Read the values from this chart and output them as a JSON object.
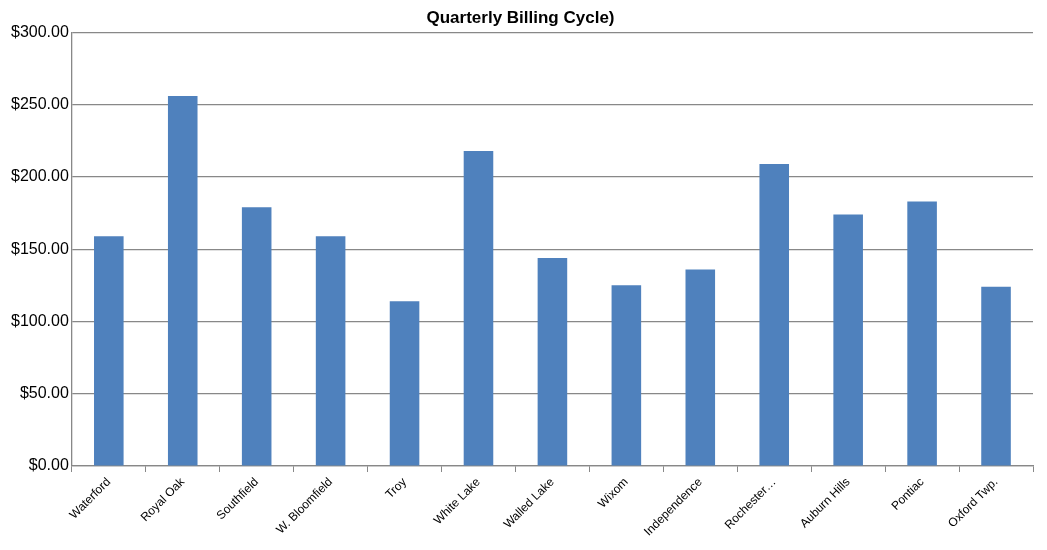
{
  "chart_data": {
    "type": "bar",
    "title": "Quarterly Billing Cycle)",
    "categories": [
      "Waterford",
      "Royal Oak",
      "Southfield",
      "W. Bloomfield",
      "Troy",
      "White Lake",
      "Walled Lake",
      "Wixom",
      "Independence",
      "Rochester…",
      "Auburn Hills",
      "Pontiac",
      "Oxford Twp."
    ],
    "values": [
      159,
      256,
      179,
      159,
      114,
      218,
      144,
      125,
      136,
      209,
      174,
      183,
      124
    ],
    "color": "#4f81bd",
    "ylim": [
      0,
      300
    ],
    "yticks": [
      {
        "value": 0,
        "label": "$0.00"
      },
      {
        "value": 50,
        "label": "$50.00"
      },
      {
        "value": 100,
        "label": "$100.00"
      },
      {
        "value": 150,
        "label": "$150.00"
      },
      {
        "value": 200,
        "label": "$200.00"
      },
      {
        "value": 250,
        "label": "$250.00"
      },
      {
        "value": 300,
        "label": "$300.00"
      }
    ],
    "grid": "y",
    "legend": false
  }
}
